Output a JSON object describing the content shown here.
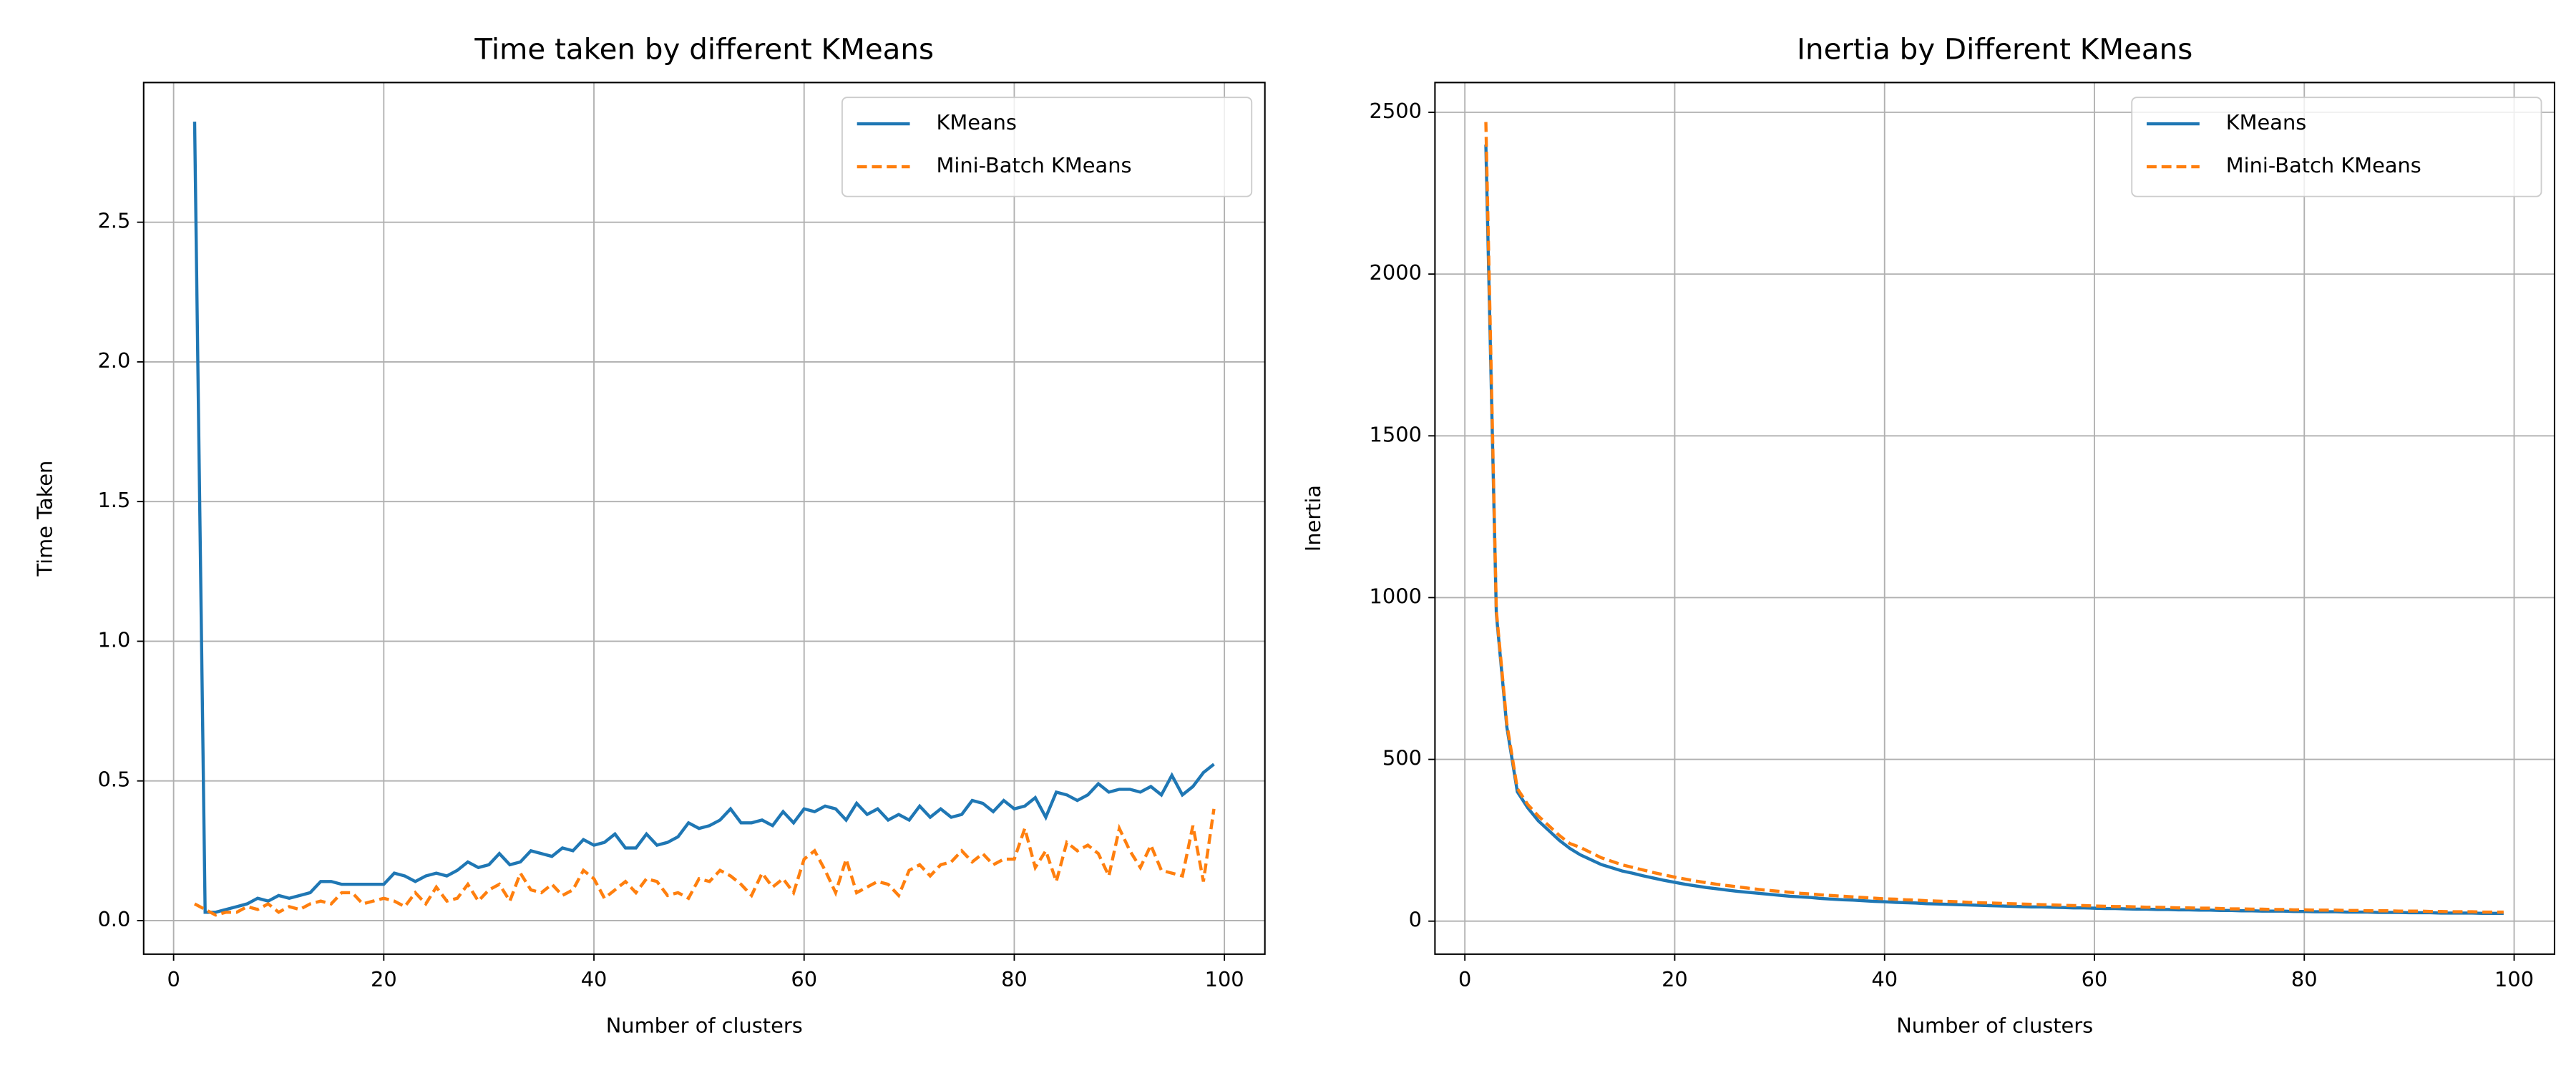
{
  "chart_data": [
    {
      "type": "line",
      "title": "Time taken by different KMeans",
      "xlabel": "Number of clusters",
      "ylabel": "Time Taken",
      "x": [
        2,
        3,
        4,
        5,
        6,
        7,
        8,
        9,
        10,
        11,
        12,
        13,
        14,
        15,
        16,
        17,
        18,
        19,
        20,
        21,
        22,
        23,
        24,
        25,
        26,
        27,
        28,
        29,
        30,
        31,
        32,
        33,
        34,
        35,
        36,
        37,
        38,
        39,
        40,
        41,
        42,
        43,
        44,
        45,
        46,
        47,
        48,
        49,
        50,
        51,
        52,
        53,
        54,
        55,
        56,
        57,
        58,
        59,
        60,
        61,
        62,
        63,
        64,
        65,
        66,
        67,
        68,
        69,
        70,
        71,
        72,
        73,
        74,
        75,
        76,
        77,
        78,
        79,
        80,
        81,
        82,
        83,
        84,
        85,
        86,
        87,
        88,
        89,
        90,
        91,
        92,
        93,
        94,
        95,
        96,
        97,
        98,
        99
      ],
      "series": [
        {
          "name": "KMeans",
          "color": "#1f77b4",
          "linestyle": "solid",
          "values": [
            2.86,
            0.03,
            0.03,
            0.04,
            0.05,
            0.06,
            0.08,
            0.07,
            0.09,
            0.08,
            0.09,
            0.1,
            0.14,
            0.14,
            0.13,
            0.13,
            0.13,
            0.13,
            0.13,
            0.17,
            0.16,
            0.14,
            0.16,
            0.17,
            0.16,
            0.18,
            0.21,
            0.19,
            0.2,
            0.24,
            0.2,
            0.21,
            0.25,
            0.24,
            0.23,
            0.26,
            0.25,
            0.29,
            0.27,
            0.28,
            0.31,
            0.26,
            0.26,
            0.31,
            0.27,
            0.28,
            0.3,
            0.35,
            0.33,
            0.34,
            0.36,
            0.4,
            0.35,
            0.35,
            0.36,
            0.34,
            0.39,
            0.35,
            0.4,
            0.39,
            0.41,
            0.4,
            0.36,
            0.42,
            0.38,
            0.4,
            0.36,
            0.38,
            0.36,
            0.41,
            0.37,
            0.4,
            0.37,
            0.38,
            0.43,
            0.42,
            0.39,
            0.43,
            0.4,
            0.41,
            0.44,
            0.37,
            0.46,
            0.45,
            0.43,
            0.45,
            0.49,
            0.46,
            0.47,
            0.47,
            0.46,
            0.48,
            0.45,
            0.52,
            0.45,
            0.48,
            0.53,
            0.56
          ]
        },
        {
          "name": "Mini-Batch KMeans",
          "color": "#ff7f0e",
          "linestyle": "dashed",
          "values": [
            0.06,
            0.04,
            0.02,
            0.03,
            0.03,
            0.05,
            0.04,
            0.06,
            0.03,
            0.05,
            0.04,
            0.06,
            0.07,
            0.06,
            0.1,
            0.1,
            0.06,
            0.07,
            0.08,
            0.07,
            0.05,
            0.1,
            0.06,
            0.12,
            0.07,
            0.08,
            0.13,
            0.07,
            0.11,
            0.13,
            0.07,
            0.17,
            0.11,
            0.1,
            0.13,
            0.09,
            0.11,
            0.18,
            0.15,
            0.08,
            0.11,
            0.14,
            0.1,
            0.15,
            0.14,
            0.09,
            0.1,
            0.08,
            0.15,
            0.14,
            0.18,
            0.16,
            0.13,
            0.09,
            0.17,
            0.12,
            0.15,
            0.1,
            0.22,
            0.25,
            0.18,
            0.1,
            0.22,
            0.1,
            0.12,
            0.14,
            0.13,
            0.09,
            0.18,
            0.2,
            0.16,
            0.2,
            0.21,
            0.25,
            0.21,
            0.24,
            0.2,
            0.22,
            0.22,
            0.33,
            0.19,
            0.25,
            0.14,
            0.28,
            0.25,
            0.27,
            0.24,
            0.16,
            0.33,
            0.25,
            0.19,
            0.27,
            0.18,
            0.17,
            0.16,
            0.34,
            0.14,
            0.4
          ]
        }
      ],
      "xlim": [
        -2.85,
        103.85
      ],
      "xticks": [
        0,
        20,
        40,
        60,
        80,
        100
      ],
      "ylim": [
        -0.12,
        3.0
      ],
      "yticks": [
        {
          "value": 0,
          "label": "0.0"
        },
        0.5,
        {
          "value": 1,
          "label": "1.0"
        },
        1.5,
        {
          "value": 2,
          "label": "2.0"
        },
        2.5
      ],
      "grid": true,
      "legend": "upper right"
    },
    {
      "type": "line",
      "title": "Inertia by Different KMeans",
      "xlabel": "Number of clusters",
      "ylabel": "Inertia",
      "x": [
        2,
        3,
        4,
        5,
        6,
        7,
        8,
        9,
        10,
        11,
        12,
        13,
        14,
        15,
        16,
        17,
        18,
        19,
        20,
        21,
        22,
        23,
        24,
        25,
        26,
        27,
        28,
        29,
        30,
        31,
        32,
        33,
        34,
        35,
        36,
        37,
        38,
        39,
        40,
        41,
        42,
        43,
        44,
        45,
        46,
        47,
        48,
        49,
        50,
        51,
        52,
        53,
        54,
        55,
        56,
        57,
        58,
        59,
        60,
        61,
        62,
        63,
        64,
        65,
        66,
        67,
        68,
        69,
        70,
        71,
        72,
        73,
        74,
        75,
        76,
        77,
        78,
        79,
        80,
        81,
        82,
        83,
        84,
        85,
        86,
        87,
        88,
        89,
        90,
        91,
        92,
        93,
        94,
        95,
        96,
        97,
        98,
        99
      ],
      "series": [
        {
          "name": "KMeans",
          "color": "#1f77b4",
          "linestyle": "solid",
          "values": [
            2400,
            950,
            600,
            400,
            350,
            310,
            280,
            250,
            225,
            205,
            190,
            175,
            165,
            155,
            148,
            140,
            133,
            126,
            120,
            114,
            109,
            104,
            100,
            96,
            92,
            89,
            86,
            83,
            80,
            77,
            75,
            73,
            70,
            68,
            66,
            65,
            63,
            61,
            60,
            58,
            57,
            56,
            54,
            53,
            52,
            51,
            50,
            49,
            48,
            47,
            46,
            45,
            44,
            44,
            43,
            42,
            41,
            41,
            40,
            39,
            39,
            38,
            37,
            37,
            36,
            36,
            35,
            35,
            34,
            34,
            33,
            33,
            32,
            32,
            31,
            31,
            31,
            30,
            30,
            29,
            29,
            29,
            28,
            28,
            28,
            27,
            27,
            27,
            26,
            26,
            26,
            25,
            25,
            25,
            25,
            24,
            24,
            24
          ]
        },
        {
          "name": "Mini-Batch KMeans",
          "color": "#ff7f0e",
          "linestyle": "dashed",
          "values": [
            2470,
            960,
            610,
            410,
            360,
            325,
            295,
            265,
            240,
            228,
            212,
            196,
            185,
            174,
            166,
            158,
            150,
            143,
            136,
            130,
            124,
            119,
            114,
            110,
            106,
            102,
            98,
            95,
            92,
            89,
            86,
            84,
            81,
            79,
            77,
            75,
            73,
            71,
            69,
            68,
            66,
            65,
            63,
            62,
            61,
            60,
            58,
            57,
            56,
            55,
            54,
            53,
            52,
            51,
            50,
            49,
            48,
            48,
            47,
            46,
            45,
            45,
            44,
            43,
            43,
            42,
            41,
            41,
            40,
            40,
            39,
            38,
            38,
            37,
            37,
            36,
            36,
            35,
            35,
            34,
            34,
            34,
            33,
            33,
            32,
            32,
            32,
            31,
            31,
            31,
            30,
            30,
            29,
            29,
            29,
            28,
            28,
            28
          ]
        }
      ],
      "xlim": [
        -2.85,
        103.85
      ],
      "xticks": [
        0,
        20,
        40,
        60,
        80,
        100
      ],
      "ylim": [
        -102,
        2592
      ],
      "yticks": [
        0,
        500,
        1000,
        1500,
        2000,
        2500
      ],
      "grid": true,
      "legend": "upper right"
    }
  ]
}
